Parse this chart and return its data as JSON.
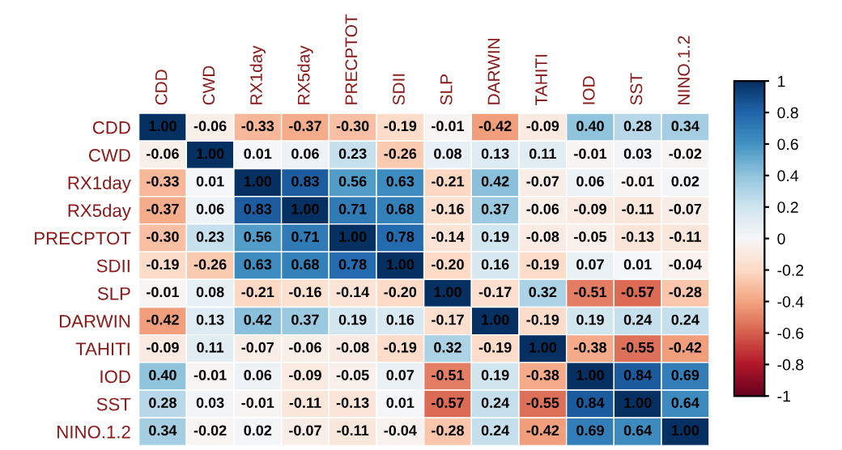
{
  "chart_data": {
    "type": "heatmap",
    "categories": [
      "CDD",
      "CWD",
      "RX1day",
      "RX5day",
      "PRECPTOT",
      "SDII",
      "SLP",
      "DARWIN",
      "TAHITI",
      "IOD",
      "SST",
      "NINO.1.2"
    ],
    "y_categories": [
      "CDD",
      "CWD",
      "RX1day",
      "RX5day",
      "PRECPTOT",
      "SDII",
      "SLP",
      "DARWIN",
      "TAHITI",
      "IOD",
      "SST",
      "NINO.1.2"
    ],
    "cells": [
      [
        1,
        -0.06,
        -0.33,
        -0.37,
        -0.3,
        -0.19,
        -0.01,
        -0.42,
        -0.09,
        0.4,
        0.28,
        0.34
      ],
      [
        -0.06,
        1,
        0.01,
        0.06,
        0.23,
        -0.26,
        0.08,
        0.13,
        0.11,
        -0.01,
        0.03,
        -0.02
      ],
      [
        -0.33,
        0.01,
        1,
        0.83,
        0.56,
        0.63,
        -0.21,
        0.42,
        -0.07,
        0.06,
        -0.01,
        0.02
      ],
      [
        -0.37,
        0.06,
        0.83,
        1,
        0.71,
        0.68,
        -0.16,
        0.37,
        -0.06,
        -0.09,
        -0.11,
        -0.07
      ],
      [
        -0.3,
        0.23,
        0.56,
        0.71,
        1,
        0.78,
        -0.14,
        0.19,
        -0.08,
        -0.05,
        -0.13,
        -0.11
      ],
      [
        -0.19,
        -0.26,
        0.63,
        0.68,
        0.78,
        1,
        -0.2,
        0.16,
        -0.19,
        0.07,
        0.01,
        -0.04
      ],
      [
        -0.01,
        0.08,
        -0.21,
        -0.16,
        -0.14,
        -0.2,
        1,
        -0.17,
        0.32,
        -0.51,
        -0.57,
        -0.28
      ],
      [
        -0.42,
        0.13,
        0.42,
        0.37,
        0.19,
        0.16,
        -0.17,
        1,
        -0.19,
        0.19,
        0.24,
        0.24
      ],
      [
        -0.09,
        0.11,
        -0.07,
        -0.06,
        -0.08,
        -0.19,
        0.32,
        -0.19,
        1,
        -0.38,
        -0.55,
        -0.42
      ],
      [
        0.4,
        -0.01,
        0.06,
        -0.09,
        -0.05,
        0.07,
        -0.51,
        0.19,
        -0.38,
        1,
        0.84,
        0.69
      ],
      [
        0.28,
        0.03,
        -0.01,
        -0.11,
        -0.13,
        0.01,
        -0.57,
        0.24,
        -0.55,
        0.84,
        1,
        0.64
      ],
      [
        0.34,
        -0.02,
        0.02,
        -0.07,
        -0.11,
        -0.04,
        -0.28,
        0.24,
        -0.42,
        0.69,
        0.64,
        1
      ]
    ],
    "cell_labels": [
      [
        "1.00",
        "-0.06",
        "-0.33",
        "-0.37",
        "-0.30",
        "-0.19",
        "-0.01",
        "-0.42",
        "-0.09",
        "0.40",
        "0.28",
        "0.34"
      ],
      [
        "-0.06",
        "1.00",
        "0.01",
        "0.06",
        "0.23",
        "-0.26",
        "0.08",
        "0.13",
        "0.11",
        "-0.01",
        "0.03",
        "-0.02"
      ],
      [
        "-0.33",
        "0.01",
        "1.00",
        "0.83",
        "0.56",
        "0.63",
        "-0.21",
        "0.42",
        "-0.07",
        "0.06",
        "-0.01",
        "0.02"
      ],
      [
        "-0.37",
        "0.06",
        "0.83",
        "1.00",
        "0.71",
        "0.68",
        "-0.16",
        "0.37",
        "-0.06",
        "-0.09",
        "-0.11",
        "-0.07"
      ],
      [
        "-0.30",
        "0.23",
        "0.56",
        "0.71",
        "1.00",
        "0.78",
        "-0.14",
        "0.19",
        "-0.08",
        "-0.05",
        "-0.13",
        "-0.11"
      ],
      [
        "-0.19",
        "-0.26",
        "0.63",
        "0.68",
        "0.78",
        "1.00",
        "-0.20",
        "0.16",
        "-0.19",
        "0.07",
        "0.01",
        "-0.04"
      ],
      [
        "-0.01",
        "0.08",
        "-0.21",
        "-0.16",
        "-0.14",
        "-0.20",
        "1.00",
        "-0.17",
        "0.32",
        "-0.51",
        "-0.57",
        "-0.28"
      ],
      [
        "-0.42",
        "0.13",
        "0.42",
        "0.37",
        "0.19",
        "0.16",
        "-0.17",
        "1.00",
        "-0.19",
        "0.19",
        "0.24",
        "0.24"
      ],
      [
        "-0.09",
        "0.11",
        "-0.07",
        "-0.06",
        "-0.08",
        "-0.19",
        "0.32",
        "-0.19",
        "1.00",
        "-0.38",
        "-0.55",
        "-0.42"
      ],
      [
        "0.40",
        "-0.01",
        "0.06",
        "-0.09",
        "-0.05",
        "0.07",
        "-0.51",
        "0.19",
        "-0.38",
        "1.00",
        "0.84",
        "0.69"
      ],
      [
        "0.28",
        "0.03",
        "-0.01",
        "-0.11",
        "-0.13",
        "0.01",
        "-0.57",
        "0.24",
        "-0.55",
        "0.84",
        "1.00",
        "0.64"
      ],
      [
        "0.34",
        "-0.02",
        "0.02",
        "-0.07",
        "-0.11",
        "-0.04",
        "-0.28",
        "0.24",
        "-0.42",
        "0.69",
        "0.64",
        "1.00"
      ]
    ],
    "clim": [
      -1,
      1
    ],
    "cticks": [
      1,
      0.8,
      0.6,
      0.4,
      0.2,
      0,
      -0.2,
      -0.4,
      -0.6,
      -0.8,
      -1
    ]
  }
}
